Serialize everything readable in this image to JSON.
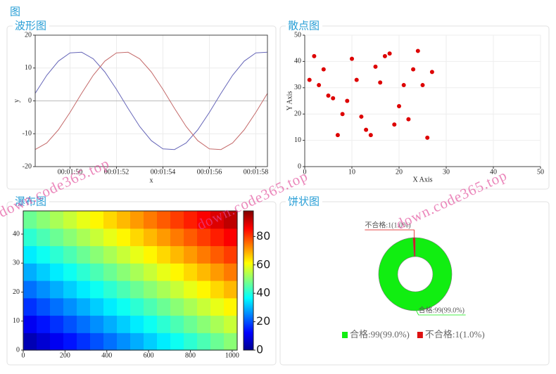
{
  "header": {
    "title": "图"
  },
  "watermark": "down.code365.top",
  "chart_data": [
    {
      "type": "line",
      "title": "波形图",
      "x_label": "x",
      "y_label": "y",
      "x": [
        108.5,
        109,
        109.5,
        110,
        110.5,
        111,
        111.5,
        112,
        112.5,
        113,
        113.5,
        114,
        114.5,
        115,
        115.5,
        116,
        116.5,
        117,
        117.5,
        118,
        118.5
      ],
      "series": [
        {
          "color": "#6666b8",
          "values": [
            2.3,
            7.8,
            12.1,
            14.6,
            14.8,
            12.8,
            8.8,
            3.5,
            -2.3,
            -7.8,
            -12.1,
            -14.6,
            -14.8,
            -12.8,
            -8.8,
            -3.5,
            2.3,
            7.8,
            12.1,
            14.6,
            14.8
          ]
        },
        {
          "color": "#c46a6a",
          "values": [
            -14.8,
            -12.8,
            -8.8,
            -3.5,
            2.3,
            7.8,
            12.1,
            14.6,
            14.8,
            12.8,
            8.8,
            3.5,
            -2.3,
            -7.8,
            -12.1,
            -14.6,
            -14.8,
            -12.8,
            -8.8,
            -3.5,
            2.3
          ]
        }
      ],
      "xlim": [
        108.5,
        118.5
      ],
      "xticks": [
        {
          "value": 110,
          "label": "00:01:50"
        },
        {
          "value": 112,
          "label": "00:01:52"
        },
        {
          "value": 114,
          "label": "00:01:54"
        },
        {
          "value": 116,
          "label": "00:01:56"
        },
        {
          "value": 118,
          "label": "00:01:58"
        }
      ],
      "ylim": [
        -20,
        20
      ],
      "yticks": [
        -20,
        -10,
        0,
        10,
        20
      ],
      "grid": true
    },
    {
      "type": "scatter",
      "title": "散点图",
      "x_label": "X Axis",
      "y_label": "Y Axis",
      "color": "#dd0000",
      "x": [
        1,
        2,
        3,
        4,
        5,
        6,
        7,
        8,
        9,
        10,
        11,
        12,
        13,
        14,
        15,
        16,
        17,
        18,
        19,
        20,
        21,
        22,
        23,
        24,
        25,
        26,
        27
      ],
      "values": [
        33,
        42,
        31,
        37,
        27,
        26,
        12,
        20,
        25,
        41,
        33,
        19,
        14,
        12,
        38,
        32,
        42,
        43,
        16,
        23,
        31,
        18,
        37,
        44,
        31,
        11,
        36
      ],
      "xlim": [
        0,
        50
      ],
      "xticks": [
        0,
        10,
        20,
        30,
        40,
        50
      ],
      "ylim": [
        0,
        50
      ],
      "yticks": [
        0,
        10,
        20,
        30,
        40,
        50
      ],
      "grid": true
    },
    {
      "type": "heatmap",
      "title": "瀑布图",
      "colormap": "jet",
      "values": [
        [
          5,
          8,
          11,
          14,
          17,
          20,
          23,
          26,
          29,
          32,
          35,
          38,
          41,
          44,
          47,
          50
        ],
        [
          11,
          14,
          17,
          20,
          23,
          26,
          29,
          32,
          35,
          38,
          41,
          44,
          47,
          50,
          53,
          56
        ],
        [
          17,
          20,
          23,
          26,
          29,
          32,
          35,
          38,
          41,
          44,
          47,
          50,
          53,
          56,
          59,
          62
        ],
        [
          23,
          26,
          29,
          32,
          35,
          38,
          41,
          44,
          47,
          50,
          53,
          56,
          59,
          62,
          65,
          68
        ],
        [
          29,
          32,
          35,
          38,
          41,
          44,
          47,
          50,
          53,
          56,
          59,
          62,
          65,
          68,
          71,
          74
        ],
        [
          35,
          38,
          41,
          44,
          47,
          50,
          53,
          56,
          59,
          62,
          65,
          68,
          71,
          74,
          77,
          80
        ],
        [
          41,
          44,
          47,
          50,
          53,
          56,
          59,
          62,
          65,
          68,
          71,
          74,
          77,
          80,
          83,
          86
        ],
        [
          47,
          50,
          53,
          56,
          59,
          62,
          65,
          68,
          71,
          74,
          77,
          80,
          83,
          86,
          89,
          92
        ]
      ],
      "xlim": [
        0,
        1024
      ],
      "xticks": [
        0,
        200,
        400,
        600,
        800,
        1000
      ],
      "ylim": [
        0,
        48
      ],
      "yticks": [
        0,
        10,
        20,
        30,
        40
      ],
      "zlim": [
        0,
        98
      ],
      "zticks": [
        0,
        20,
        40,
        60,
        80
      ]
    },
    {
      "type": "pie",
      "title": "饼状图",
      "values": [
        99,
        1
      ],
      "value_labels": [
        "合格:99(99.0%)",
        "不合格:1(1.0%)"
      ],
      "colors": [
        "#11ee11",
        "#dd1111"
      ],
      "donut": true
    }
  ]
}
